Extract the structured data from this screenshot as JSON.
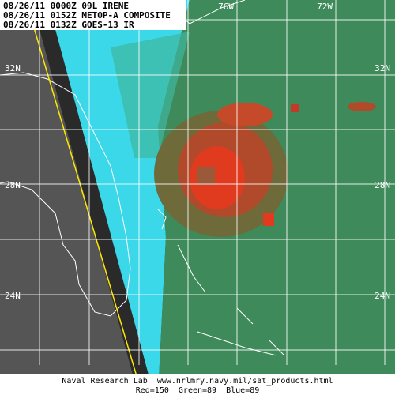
{
  "header": {
    "lines": [
      "08/26/11 0000Z 09L IRENE",
      "08/26/11 0152Z METOP-A COMPOSITE",
      "08/26/11 0132Z GOES-13 IR"
    ]
  },
  "grid_labels": {
    "longitude": [
      "76W",
      "72W"
    ],
    "latitude": [
      "32N",
      "28N",
      "24N"
    ]
  },
  "footer": {
    "credit": "Naval Research Lab  www.nrlmry.navy.mil/sat_products.html",
    "channels": "Red=150  Green=89  Blue=89"
  }
}
